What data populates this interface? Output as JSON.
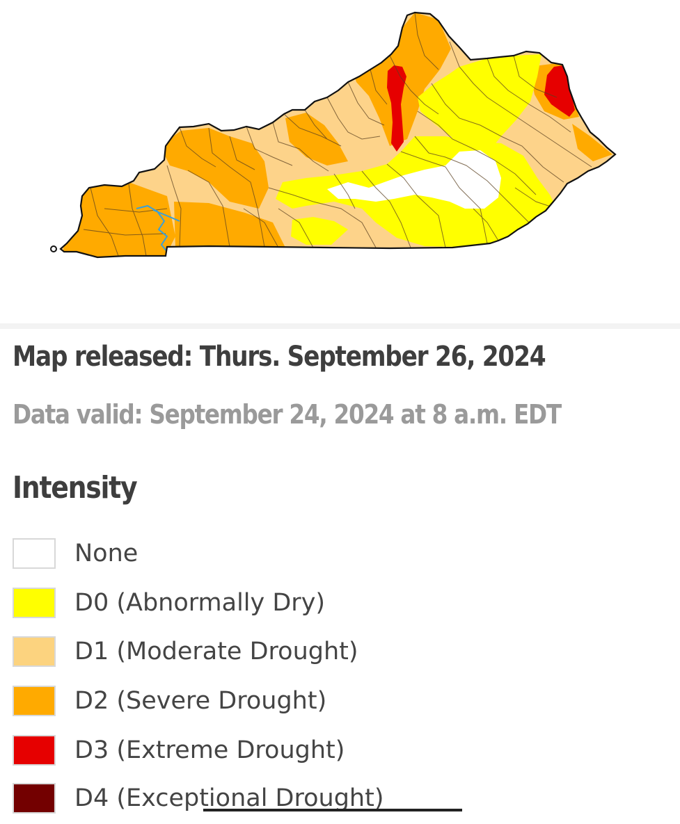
{
  "map": {
    "state": "Kentucky",
    "regions": [
      {
        "category": "D1",
        "color": "#fdd38a"
      },
      {
        "category": "D2",
        "color": "#ffaa00"
      },
      {
        "category": "D0",
        "color": "#ffff00"
      },
      {
        "category": "None",
        "color": "#ffffff"
      },
      {
        "category": "D3",
        "color": "#e60000"
      }
    ]
  },
  "header": {
    "released": "Map released: Thurs. September 26, 2024",
    "valid": "Data valid: September 24, 2024 at 8 a.m. EDT"
  },
  "legend": {
    "title": "Intensity",
    "items": [
      {
        "label": "None",
        "color": "#ffffff"
      },
      {
        "label": "D0 (Abnormally Dry)",
        "color": "#ffff00"
      },
      {
        "label": "D1 (Moderate Drought)",
        "color": "#fcd37f"
      },
      {
        "label": "D2 (Severe Drought)",
        "color": "#ffaa00"
      },
      {
        "label": "D3 (Extreme Drought)",
        "color": "#e60000"
      },
      {
        "label": "D4 (Exceptional Drought)",
        "color": "#730000"
      }
    ]
  }
}
